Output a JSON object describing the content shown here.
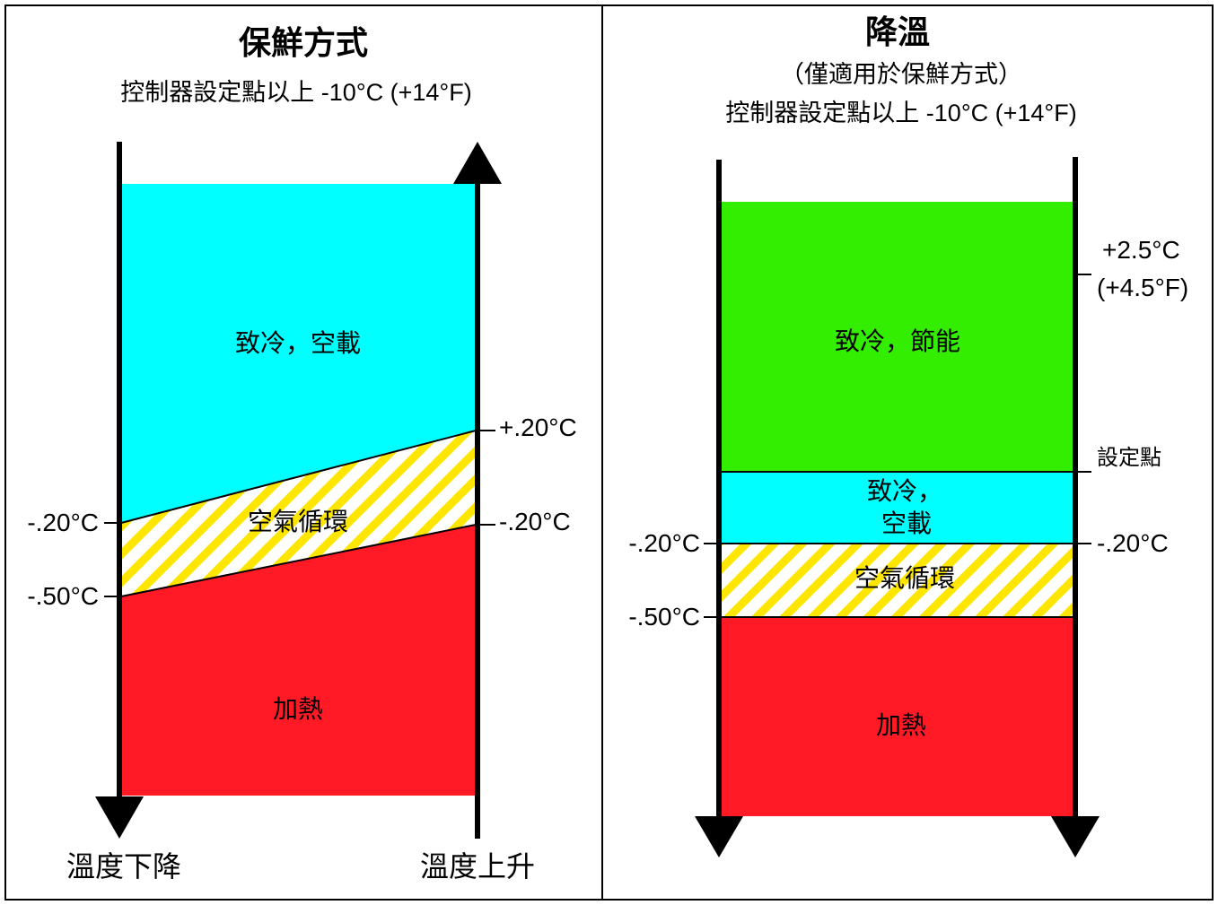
{
  "left": {
    "title": "保鮮方式",
    "subtitle": "控制器設定點以上 -10°C (+14°F)",
    "zones": {
      "cooling": "致冷，空載",
      "air": "空氣循環",
      "heating": "加熱"
    },
    "labels": {
      "left_upper": "-.20°C",
      "left_lower": "-.50°C",
      "right_upper": "+.20°C",
      "right_lower": "-.20°C"
    },
    "bottom_left": "溫度下降",
    "bottom_right": "溫度上升"
  },
  "right": {
    "title": "降溫",
    "subtitle1": "（僅適用於保鮮方式）",
    "subtitle2": "控制器設定點以上 -10°C (+14°F)",
    "zones": {
      "cooling_eco": "致冷，節能",
      "cooling_unloaded_1": "致冷，",
      "cooling_unloaded_2": "空載",
      "air": "空氣循環",
      "heating": "加熱"
    },
    "labels": {
      "upper_right_1": "+2.5°C",
      "upper_right_2": "(+4.5°F)",
      "setpoint": "設定點",
      "left_upper": "-.20°C",
      "left_lower": "-.50°C",
      "right_upper": "-.20°C"
    }
  },
  "colors": {
    "cyan": "#00ffff",
    "green": "#33ee00",
    "red": "#ff1a25",
    "yellow": "#ffe600"
  }
}
